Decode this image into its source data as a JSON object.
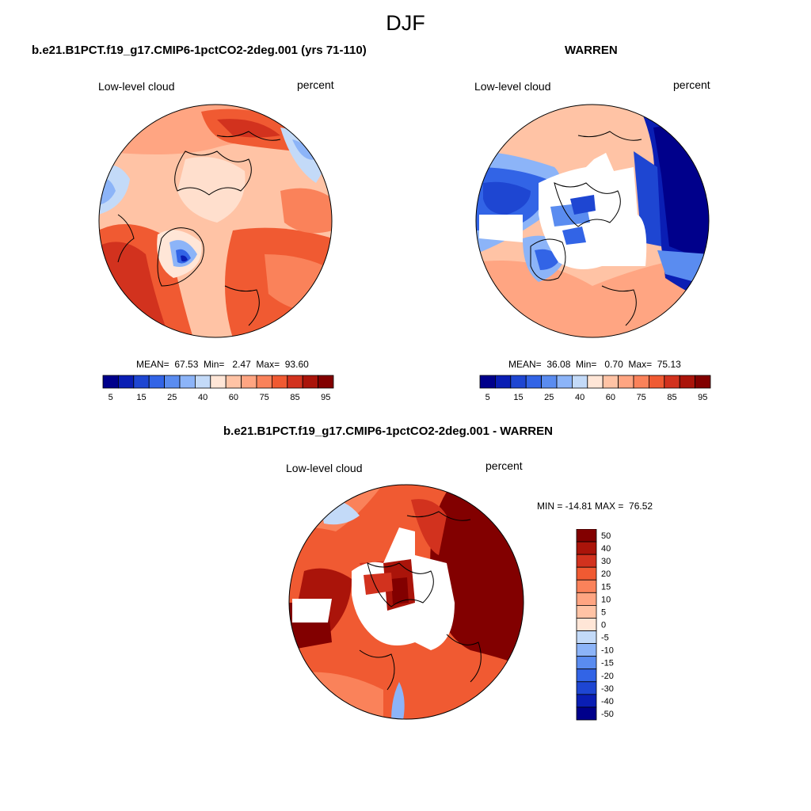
{
  "season": "DJF",
  "panels": {
    "case": {
      "title": "b.e21.B1PCT.f19_g17.CMIP6-1pctCO2-2deg.001 (yrs 71-110)",
      "variable": "Low-level cloud",
      "units": "percent",
      "stats": "MEAN=  67.53  Min=   2.47  Max=  93.60"
    },
    "obs": {
      "title": "WARREN",
      "variable": "Low-level cloud",
      "units": "percent",
      "stats": "MEAN=  36.08  Min=   0.70  Max=  75.13"
    },
    "diff": {
      "title": "b.e21.B1PCT.f19_g17.CMIP6-1pctCO2-2deg.001 - WARREN",
      "variable": "Low-level cloud",
      "units": "percent",
      "stats": "MIN = -14.81 MAX =  76.52"
    }
  },
  "colorbars": {
    "abs": {
      "tick_labels": [
        "5",
        "15",
        "25",
        "40",
        "60",
        "75",
        "85",
        "95"
      ],
      "colors": [
        "#00008b",
        "#0a1eb4",
        "#1e46d2",
        "#3264e6",
        "#5a8cf0",
        "#8cb4f8",
        "#c3daf8",
        "#ffe6d7",
        "#ffc3a5",
        "#ffa582",
        "#fa825a",
        "#f05a32",
        "#d2321e",
        "#aa140a",
        "#820000"
      ]
    },
    "diff": {
      "tick_labels": [
        "50",
        "40",
        "30",
        "20",
        "15",
        "10",
        "5",
        "0",
        "-5",
        "-10",
        "-15",
        "-20",
        "-30",
        "-40",
        "-50"
      ],
      "colors": [
        "#820000",
        "#aa140a",
        "#d2321e",
        "#f05a32",
        "#fa825a",
        "#ffa582",
        "#ffc3a5",
        "#ffe6d7",
        "#c3daf8",
        "#8cb4f8",
        "#5a8cf0",
        "#3264e6",
        "#1e46d2",
        "#0a1eb4",
        "#00008b"
      ]
    }
  }
}
